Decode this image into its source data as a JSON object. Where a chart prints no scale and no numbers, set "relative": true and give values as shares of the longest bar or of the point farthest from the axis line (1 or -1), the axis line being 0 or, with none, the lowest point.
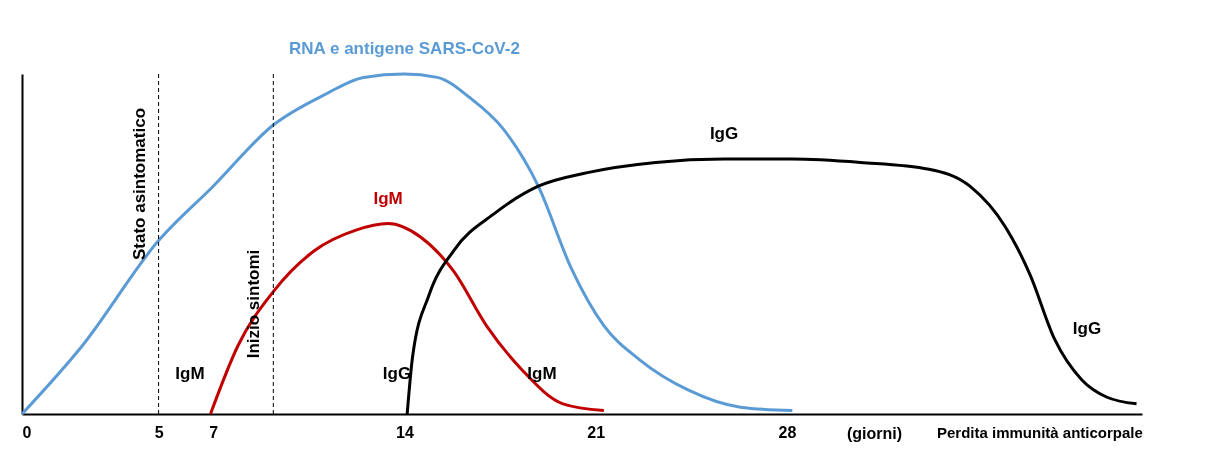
{
  "chart_data": {
    "type": "line",
    "relative": true,
    "xlabel": "(giorni)",
    "x": [
      0,
      2.2,
      5,
      7,
      9.2,
      11.1,
      12.5,
      14,
      15.2,
      16.4,
      17.6,
      18.9,
      20.1,
      21.3,
      22.6,
      24.4,
      26.3,
      28.2
    ],
    "xlim": [
      0,
      41
    ],
    "xticks": [
      0,
      5,
      7,
      14,
      21,
      28
    ],
    "grid": false,
    "line_style": "solid",
    "marker": "none",
    "series": [
      {
        "name": "RNA e antigene SARS-CoV-2",
        "color": "#5b9bd5",
        "values": [
          0,
          0.2,
          0.51,
          0.67,
          0.85,
          0.94,
          0.99,
          1,
          0.99,
          0.93,
          0.84,
          0.67,
          0.43,
          0.26,
          0.16,
          0.07,
          0.02,
          0.01
        ]
      },
      {
        "name": "IgM",
        "color": "#c00000",
        "x": [
          6.9,
          7.9,
          9.2,
          10.7,
          12.2,
          13.4,
          14.6,
          15.8,
          17.0,
          18.3,
          19.8,
          21.3
        ],
        "values": [
          0,
          0.2,
          0.36,
          0.48,
          0.54,
          0.56,
          0.52,
          0.42,
          0.26,
          0.13,
          0.03,
          0.01
        ]
      },
      {
        "name": "IgG",
        "color": "#000000",
        "x": [
          14.1,
          14.3,
          14.9,
          15.8,
          17.3,
          18.9,
          20.7,
          23.2,
          25.7,
          28.2,
          30.7,
          33.2,
          34.7,
          36.0,
          36.9,
          37.8,
          38.8,
          39.7,
          40.8
        ],
        "values": [
          0,
          0.17,
          0.35,
          0.48,
          0.59,
          0.67,
          0.71,
          0.74,
          0.75,
          0.75,
          0.74,
          0.72,
          0.67,
          0.55,
          0.41,
          0.22,
          0.1,
          0.05,
          0.03
        ]
      }
    ],
    "ref_lines": [
      {
        "axis": "x",
        "value": 5,
        "label": "Stato asintomatico",
        "color": "#000000",
        "line_style": "dashed"
      },
      {
        "axis": "x",
        "value": 9.2,
        "label": "Inizio sintomi",
        "color": "#000000",
        "line_style": "dashed"
      }
    ],
    "annotations": [
      "IgM",
      "IgM",
      "IgG",
      "IgG",
      "Perdita immunità anticorpale"
    ]
  }
}
